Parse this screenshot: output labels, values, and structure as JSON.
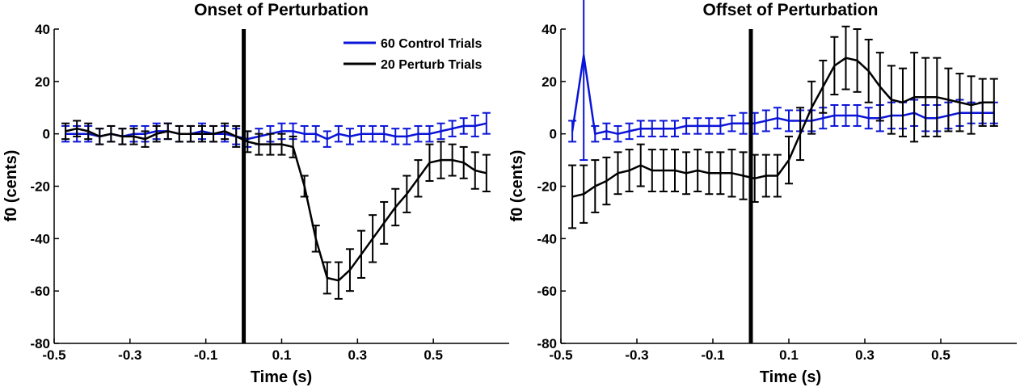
{
  "colors": {
    "control": "#0a14d8",
    "perturb": "#000000",
    "axis": "#000000",
    "marker": "#000000"
  },
  "chart_data": [
    {
      "type": "line",
      "title": "Onset of Perturbation",
      "xlabel": "Time (s)",
      "ylabel": "f0 (cents)",
      "xlim": [
        -0.5,
        0.7
      ],
      "ylim": [
        -80,
        40
      ],
      "xticks": [
        -0.5,
        -0.3,
        -0.1,
        0.1,
        0.3,
        0.5
      ],
      "xtick_labels": [
        "-0.5",
        "-0.3",
        "-0.1",
        "0.1",
        "0.3",
        "0.5"
      ],
      "yticks": [
        -80,
        -60,
        -40,
        -20,
        0,
        20,
        40
      ],
      "ytick_labels": [
        "-80",
        "-60",
        "-40",
        "-20",
        "0",
        "20",
        "40"
      ],
      "grid": false,
      "legend_position": "top-right",
      "vline_x": 0,
      "x": [
        -0.47,
        -0.44,
        -0.41,
        -0.38,
        -0.35,
        -0.32,
        -0.29,
        -0.26,
        -0.23,
        -0.2,
        -0.17,
        -0.14,
        -0.11,
        -0.08,
        -0.05,
        -0.02,
        0.01,
        0.04,
        0.07,
        0.1,
        0.13,
        0.16,
        0.19,
        0.22,
        0.25,
        0.28,
        0.31,
        0.34,
        0.37,
        0.4,
        0.43,
        0.46,
        0.49,
        0.52,
        0.55,
        0.58,
        0.61,
        0.64
      ],
      "series": [
        {
          "name": "60 Control Trials",
          "color": "#0a14d8",
          "values": [
            0,
            0,
            0,
            -1,
            0,
            -1,
            0,
            0,
            1,
            1,
            0,
            0,
            1,
            0,
            0,
            -1,
            -2,
            -1,
            0,
            1,
            1,
            0,
            0,
            -2,
            0,
            -1,
            0,
            0,
            0,
            -1,
            -1,
            0,
            0,
            1,
            2,
            3,
            3,
            4
          ],
          "error": [
            3,
            3,
            3,
            3,
            3,
            3,
            3,
            3,
            3,
            3,
            3,
            3,
            3,
            3,
            3,
            3,
            3,
            3,
            3,
            3,
            3,
            3,
            3,
            3,
            3,
            3,
            3,
            3,
            3,
            3,
            3,
            3,
            3,
            3,
            3,
            3,
            4,
            4
          ]
        },
        {
          "name": "20 Perturb Trials",
          "color": "#000000",
          "values": [
            1,
            2,
            1,
            -1,
            0,
            -1,
            -1,
            -2,
            0,
            1,
            0,
            0,
            0,
            0,
            1,
            -1,
            -3,
            -4,
            -4,
            -4,
            -5,
            -20,
            -40,
            -55,
            -56,
            -52,
            -46,
            -40,
            -34,
            -28,
            -23,
            -17,
            -11,
            -10,
            -10,
            -11,
            -14,
            -15
          ],
          "error": [
            3,
            3,
            3,
            3,
            3,
            3,
            3,
            3,
            3,
            3,
            3,
            3,
            3,
            3,
            3,
            4,
            4,
            4,
            4,
            4,
            4,
            4,
            5,
            6,
            7,
            8,
            9,
            9,
            8,
            7,
            7,
            7,
            7,
            7,
            6,
            6,
            7,
            7
          ]
        }
      ]
    },
    {
      "type": "line",
      "title": "Offset of Perturbation",
      "xlabel": "Time (s)",
      "ylabel": "f0 (cents)",
      "xlim": [
        -0.5,
        0.7
      ],
      "ylim": [
        -80,
        40
      ],
      "xticks": [
        -0.5,
        -0.3,
        -0.1,
        0.1,
        0.3,
        0.5
      ],
      "xtick_labels": [
        "-0.5",
        "-0.3",
        "-0.1",
        "0.1",
        "0.3",
        "0.5"
      ],
      "yticks": [
        -80,
        -60,
        -40,
        -20,
        0,
        20,
        40
      ],
      "ytick_labels": [
        "-80",
        "-60",
        "-40",
        "-20",
        "0",
        "20",
        "40"
      ],
      "grid": false,
      "vline_x": 0,
      "x": [
        -0.47,
        -0.44,
        -0.41,
        -0.38,
        -0.35,
        -0.32,
        -0.29,
        -0.26,
        -0.23,
        -0.2,
        -0.17,
        -0.14,
        -0.11,
        -0.08,
        -0.05,
        -0.02,
        0.01,
        0.04,
        0.07,
        0.1,
        0.13,
        0.16,
        0.19,
        0.22,
        0.25,
        0.28,
        0.31,
        0.34,
        0.37,
        0.4,
        0.43,
        0.46,
        0.49,
        0.52,
        0.55,
        0.58,
        0.61,
        0.64
      ],
      "series": [
        {
          "name": "60 Control Trials",
          "color": "#0a14d8",
          "values": [
            1,
            30,
            0,
            1,
            0,
            1,
            2,
            2,
            2,
            2,
            3,
            3,
            3,
            3,
            4,
            4,
            4,
            5,
            6,
            5,
            5,
            5,
            6,
            7,
            7,
            7,
            6,
            6,
            7,
            7,
            8,
            6,
            6,
            7,
            8,
            8,
            8,
            8
          ],
          "error": [
            4,
            40,
            3,
            3,
            3,
            3,
            3,
            3,
            3,
            3,
            3,
            3,
            3,
            3,
            3,
            4,
            4,
            4,
            4,
            4,
            4,
            4,
            4,
            4,
            4,
            4,
            4,
            5,
            5,
            5,
            5,
            5,
            5,
            5,
            5,
            4,
            4,
            4
          ]
        },
        {
          "name": "20 Perturb Trials",
          "color": "#000000",
          "values": [
            -24,
            -23,
            -20,
            -18,
            -15,
            -14,
            -12,
            -14,
            -14,
            -14,
            -15,
            -14,
            -15,
            -15,
            -15,
            -16,
            -17,
            -16,
            -16,
            -10,
            0,
            10,
            18,
            26,
            29,
            28,
            24,
            18,
            13,
            12,
            14,
            14,
            14,
            13,
            12,
            11,
            12,
            12
          ],
          "error": [
            12,
            11,
            10,
            9,
            8,
            8,
            8,
            8,
            8,
            8,
            8,
            8,
            8,
            8,
            9,
            9,
            9,
            8,
            8,
            9,
            10,
            10,
            10,
            11,
            12,
            12,
            12,
            13,
            13,
            13,
            17,
            15,
            15,
            12,
            11,
            11,
            9,
            9
          ]
        }
      ]
    }
  ]
}
